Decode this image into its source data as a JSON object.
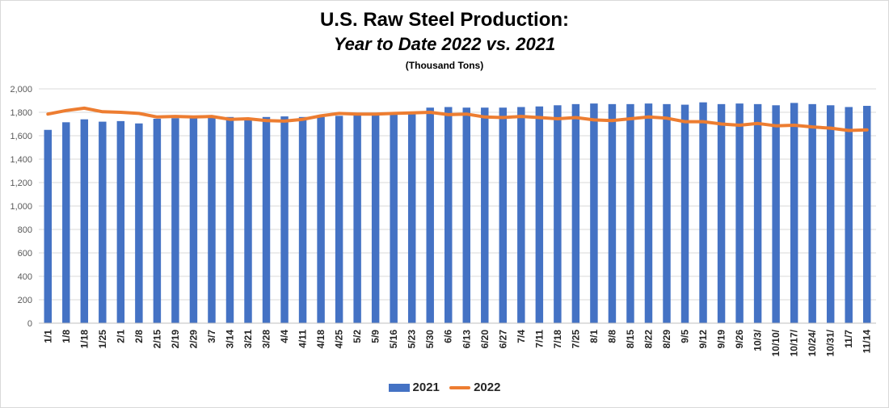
{
  "chart_data": {
    "type": "bar",
    "title": "U.S. Raw Steel Production:",
    "subtitle": "Year to Date 2022 vs. 2021",
    "units": "(Thousand Tons)",
    "xlabel": "",
    "ylabel": "",
    "ylim": [
      0,
      2000
    ],
    "yticks": [
      0,
      200,
      400,
      600,
      800,
      1000,
      1200,
      1400,
      1600,
      1800,
      2000
    ],
    "ytick_labels": [
      "0",
      "200",
      "400",
      "600",
      "800",
      "1,000",
      "1,200",
      "1,400",
      "1,600",
      "1,800",
      "2,000"
    ],
    "grid": true,
    "legend_position": "bottom",
    "categories": [
      "1/1",
      "1/8",
      "1/18",
      "1/25",
      "2/1",
      "2/8",
      "2/15",
      "2/19",
      "2/29",
      "3/7",
      "3/14",
      "3/21",
      "3/28",
      "4/4",
      "4/11",
      "4/18",
      "4/25",
      "5/2",
      "5/9",
      "5/16",
      "5/23",
      "5/30",
      "6/6",
      "6/13",
      "6/20",
      "6/27",
      "7/4",
      "7/11",
      "7/18",
      "7/25",
      "8/1",
      "8/8",
      "8/15",
      "8/22",
      "8/29",
      "9/5",
      "9/12",
      "9/19",
      "9/26",
      "10/3/",
      "10/10/",
      "10/17/",
      "10/24/",
      "10/31/",
      "11/7",
      "11/14"
    ],
    "series": [
      {
        "name": "2021",
        "kind": "bar",
        "color": "#4472C4",
        "values": [
          1650,
          1715,
          1740,
          1720,
          1725,
          1705,
          1745,
          1750,
          1750,
          1760,
          1760,
          1755,
          1760,
          1765,
          1760,
          1760,
          1770,
          1775,
          1785,
          1790,
          1800,
          1840,
          1845,
          1840,
          1840,
          1840,
          1845,
          1850,
          1860,
          1870,
          1875,
          1870,
          1870,
          1875,
          1870,
          1865,
          1885,
          1870,
          1875,
          1870,
          1860,
          1880,
          1870,
          1860,
          1845,
          1855
        ]
      },
      {
        "name": "2022",
        "kind": "line",
        "color": "#ED7D31",
        "values": [
          1785,
          1815,
          1835,
          1805,
          1800,
          1790,
          1760,
          1765,
          1760,
          1765,
          1740,
          1745,
          1730,
          1725,
          1740,
          1770,
          1790,
          1785,
          1785,
          1790,
          1795,
          1800,
          1780,
          1785,
          1760,
          1755,
          1765,
          1755,
          1745,
          1755,
          1735,
          1730,
          1745,
          1760,
          1750,
          1720,
          1720,
          1700,
          1690,
          1705,
          1685,
          1690,
          1675,
          1665,
          1645,
          1650
        ]
      }
    ]
  }
}
